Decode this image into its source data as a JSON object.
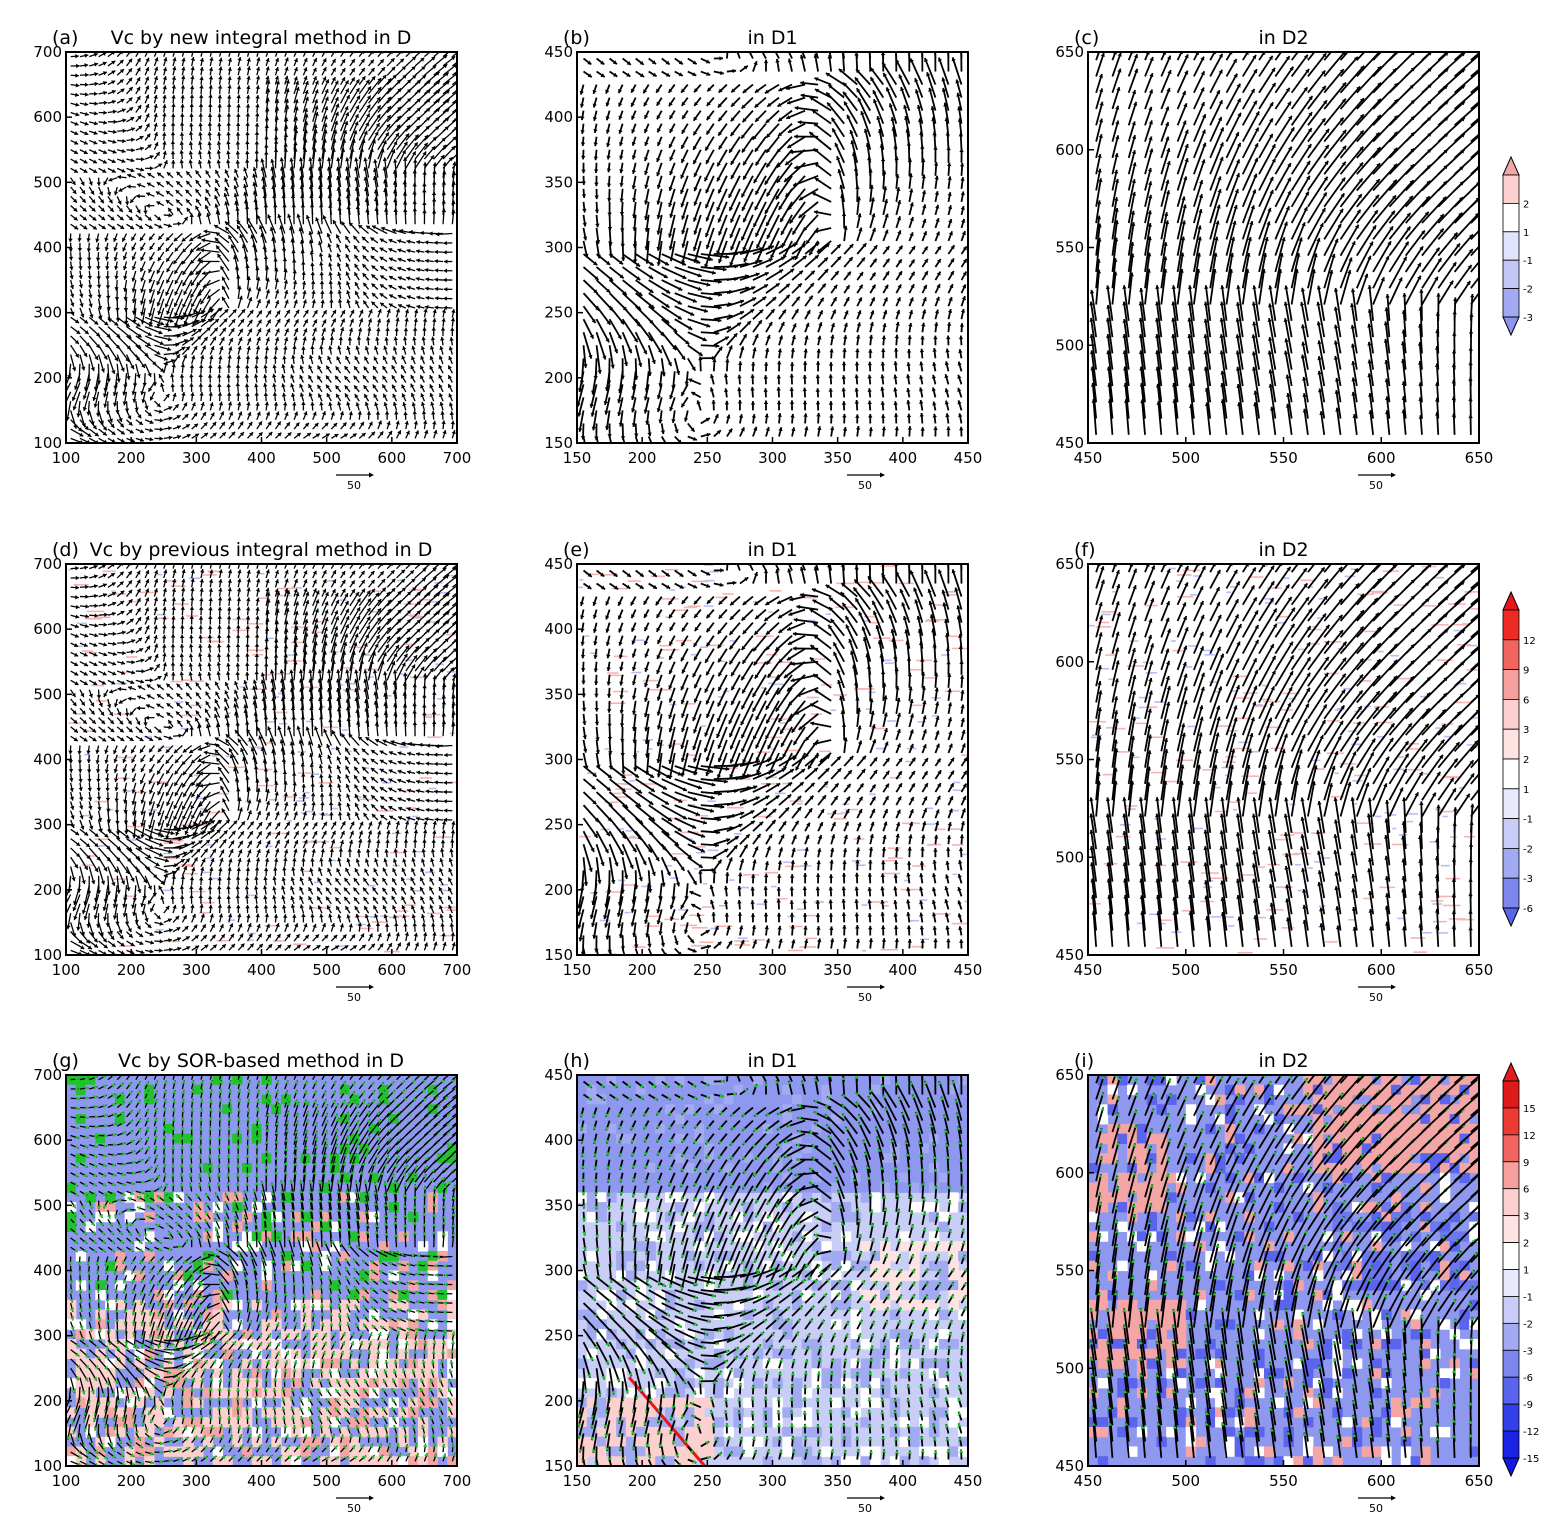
{
  "chart_data": [
    {
      "panel": "a",
      "label": "(a)",
      "title": "Vc by new integral method in D",
      "type": "vector-field",
      "xlim": [
        100,
        700
      ],
      "ylim": [
        100,
        700
      ],
      "xticks": [
        100,
        200,
        300,
        400,
        500,
        600,
        700
      ],
      "yticks": [
        100,
        200,
        300,
        400,
        500,
        600,
        700
      ],
      "ref_vector": "50",
      "colorbar": "cb1",
      "grid_n": 42,
      "scale": 0.38,
      "fill": null,
      "green": false
    },
    {
      "panel": "b",
      "label": "(b)",
      "title": "in D1",
      "type": "vector-field",
      "xlim": [
        150,
        450
      ],
      "ylim": [
        150,
        450
      ],
      "xticks": [
        150,
        200,
        250,
        300,
        350,
        400,
        450
      ],
      "yticks": [
        150,
        200,
        250,
        300,
        350,
        400,
        450
      ],
      "ref_vector": "50",
      "colorbar": "cb1",
      "grid_n": 30,
      "scale": 0.7,
      "fill": null,
      "green": false
    },
    {
      "panel": "c",
      "label": "(c)",
      "title": "in D2",
      "type": "vector-field",
      "xlim": [
        450,
        650
      ],
      "ylim": [
        450,
        650
      ],
      "xticks": [
        450,
        500,
        550,
        600,
        650
      ],
      "yticks": [
        450,
        500,
        550,
        600,
        650
      ],
      "ref_vector": "50",
      "colorbar": "cb1",
      "grid_n": 24,
      "scale": 0.9,
      "fill": null,
      "green": false
    },
    {
      "panel": "d",
      "label": "(d)",
      "title": "Vc by previous integral method in D",
      "type": "vector-field",
      "xlim": [
        100,
        700
      ],
      "ylim": [
        100,
        700
      ],
      "xticks": [
        100,
        200,
        300,
        400,
        500,
        600,
        700
      ],
      "yticks": [
        100,
        200,
        300,
        400,
        500,
        600,
        700
      ],
      "ref_vector": "50",
      "colorbar": "cb2",
      "grid_n": 42,
      "scale": 0.38,
      "fill": "speckle",
      "green": false
    },
    {
      "panel": "e",
      "label": "(e)",
      "title": "in D1",
      "type": "vector-field",
      "xlim": [
        150,
        450
      ],
      "ylim": [
        150,
        450
      ],
      "xticks": [
        150,
        200,
        250,
        300,
        350,
        400,
        450
      ],
      "yticks": [
        150,
        200,
        250,
        300,
        350,
        400,
        450
      ],
      "ref_vector": "50",
      "colorbar": "cb2",
      "grid_n": 30,
      "scale": 0.7,
      "fill": "speckle",
      "green": false
    },
    {
      "panel": "f",
      "label": "(f)",
      "title": "in D2",
      "type": "vector-field",
      "xlim": [
        450,
        650
      ],
      "ylim": [
        450,
        650
      ],
      "xticks": [
        450,
        500,
        550,
        600,
        650
      ],
      "yticks": [
        450,
        500,
        550,
        600,
        650
      ],
      "ref_vector": "50",
      "colorbar": "cb2",
      "grid_n": 24,
      "scale": 0.9,
      "fill": "speckle",
      "green": false
    },
    {
      "panel": "g",
      "label": "(g)",
      "title": "Vc by SOR-based method in D",
      "type": "vector-field",
      "xlim": [
        100,
        700
      ],
      "ylim": [
        100,
        700
      ],
      "xticks": [
        100,
        200,
        300,
        400,
        500,
        600,
        700
      ],
      "yticks": [
        100,
        200,
        300,
        400,
        500,
        600,
        700
      ],
      "ref_vector": "50",
      "colorbar": "cb3",
      "grid_n": 42,
      "scale": 0.38,
      "fill": "dense",
      "green": true
    },
    {
      "panel": "h",
      "label": "(h)",
      "title": "in D1",
      "type": "vector-field",
      "xlim": [
        150,
        450
      ],
      "ylim": [
        150,
        450
      ],
      "xticks": [
        150,
        200,
        250,
        300,
        350,
        400,
        450
      ],
      "yticks": [
        150,
        200,
        250,
        300,
        350,
        400,
        450
      ],
      "ref_vector": "50",
      "colorbar": "cb3",
      "grid_n": 30,
      "scale": 0.7,
      "fill": "dense",
      "green": true
    },
    {
      "panel": "i",
      "label": "(i)",
      "title": "in D2",
      "type": "vector-field",
      "xlim": [
        450,
        650
      ],
      "ylim": [
        450,
        650
      ],
      "xticks": [
        450,
        500,
        550,
        600,
        650
      ],
      "yticks": [
        450,
        500,
        550,
        600,
        650
      ],
      "ref_vector": "50",
      "colorbar": "cb3",
      "grid_n": 24,
      "scale": 0.9,
      "fill": "dense",
      "green": true
    }
  ],
  "colorbars": {
    "cb1": {
      "labels": [
        "2",
        "1",
        "-1",
        "-2",
        "-3"
      ],
      "colors": [
        "#fbd0cf",
        "#ffffff",
        "#e0e3fb",
        "#c2c7f6",
        "#a2aaf1"
      ],
      "top": "#f4a8a6",
      "bottom": "#8d95ee"
    },
    "cb2": {
      "labels": [
        "12",
        "9",
        "6",
        "3",
        "2",
        "1",
        "-1",
        "-2",
        "-3",
        "-6"
      ],
      "colors": [
        "#ee2a24",
        "#f26460",
        "#f6a09d",
        "#fbd0cf",
        "#fde4e3",
        "#ffffff",
        "#e8eafc",
        "#c8ccf7",
        "#a2aaf1",
        "#7d86ee"
      ],
      "top": "#e8161a",
      "bottom": "#5a64ec"
    },
    "cb3": {
      "labels": [
        "15",
        "12",
        "9",
        "6",
        "3",
        "2",
        "1",
        "-1",
        "-2",
        "-3",
        "-6",
        "-9",
        "-12",
        "-15"
      ],
      "colors": [
        "#e01a1a",
        "#ee3a34",
        "#f26460",
        "#f6a09d",
        "#fbd0cf",
        "#fde4e3",
        "#ffffff",
        "#e8eafc",
        "#c8ccf7",
        "#a2aaf1",
        "#7d86ee",
        "#5a64ec",
        "#3340ea",
        "#1a22e6"
      ],
      "top": "#e41e1e",
      "bottom": "#1218e6"
    }
  },
  "colors": {
    "fill_blue": "#8c98f0",
    "fill_pink": "#f3a3a3",
    "fill_lightblue": "#c3c9f6",
    "green": "#22c22e",
    "red_line": "#e8161a"
  }
}
